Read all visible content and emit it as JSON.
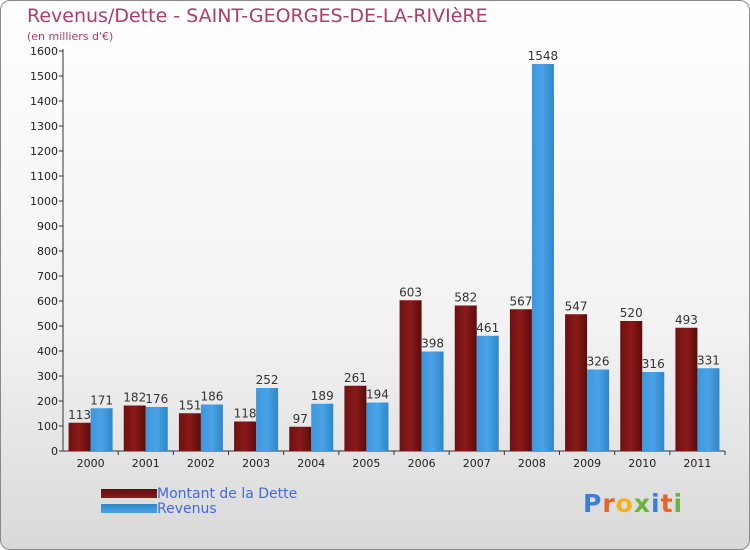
{
  "header": {
    "title": "Revenus/Dette - SAINT-GEORGES-DE-LA-RIVIèRE",
    "subtitle": "(en milliers d'€)"
  },
  "colors": {
    "debt": "#8b1a1a",
    "revenue": "#4aa3e6",
    "title": "#b03a6e",
    "legend_text": "#4169e1"
  },
  "chart_data": {
    "type": "bar",
    "title": "Revenus/Dette - SAINT-GEORGES-DE-LA-RIVIèRE",
    "ylabel": "(en milliers d'€)",
    "xlabel": "",
    "categories": [
      "2000",
      "2001",
      "2002",
      "2003",
      "2004",
      "2005",
      "2006",
      "2007",
      "2008",
      "2009",
      "2010",
      "2011"
    ],
    "series": [
      {
        "name": "Montant de la Dette",
        "values": [
          113,
          182,
          151,
          118,
          97,
          261,
          603,
          582,
          567,
          547,
          520,
          493
        ]
      },
      {
        "name": "Revenus",
        "values": [
          171,
          176,
          186,
          252,
          189,
          194,
          398,
          461,
          1548,
          326,
          316,
          331
        ]
      }
    ],
    "ylim": [
      0,
      1600
    ],
    "yticks": [
      0,
      100,
      200,
      300,
      400,
      500,
      600,
      700,
      800,
      900,
      1000,
      1100,
      1200,
      1300,
      1400,
      1500,
      1600
    ],
    "grid": false,
    "legend_position": "bottom-left"
  },
  "legend": [
    {
      "label": "Montant de la Dette"
    },
    {
      "label": "Revenus"
    }
  ],
  "logo": {
    "letters": [
      "P",
      "r",
      "o",
      "x",
      "i",
      "t",
      "i"
    ],
    "colors": [
      "#3a7fd5",
      "#e8632b",
      "#f2b21b",
      "#6cb33f",
      "#3a7fd5",
      "#e8632b",
      "#6cb33f"
    ]
  }
}
